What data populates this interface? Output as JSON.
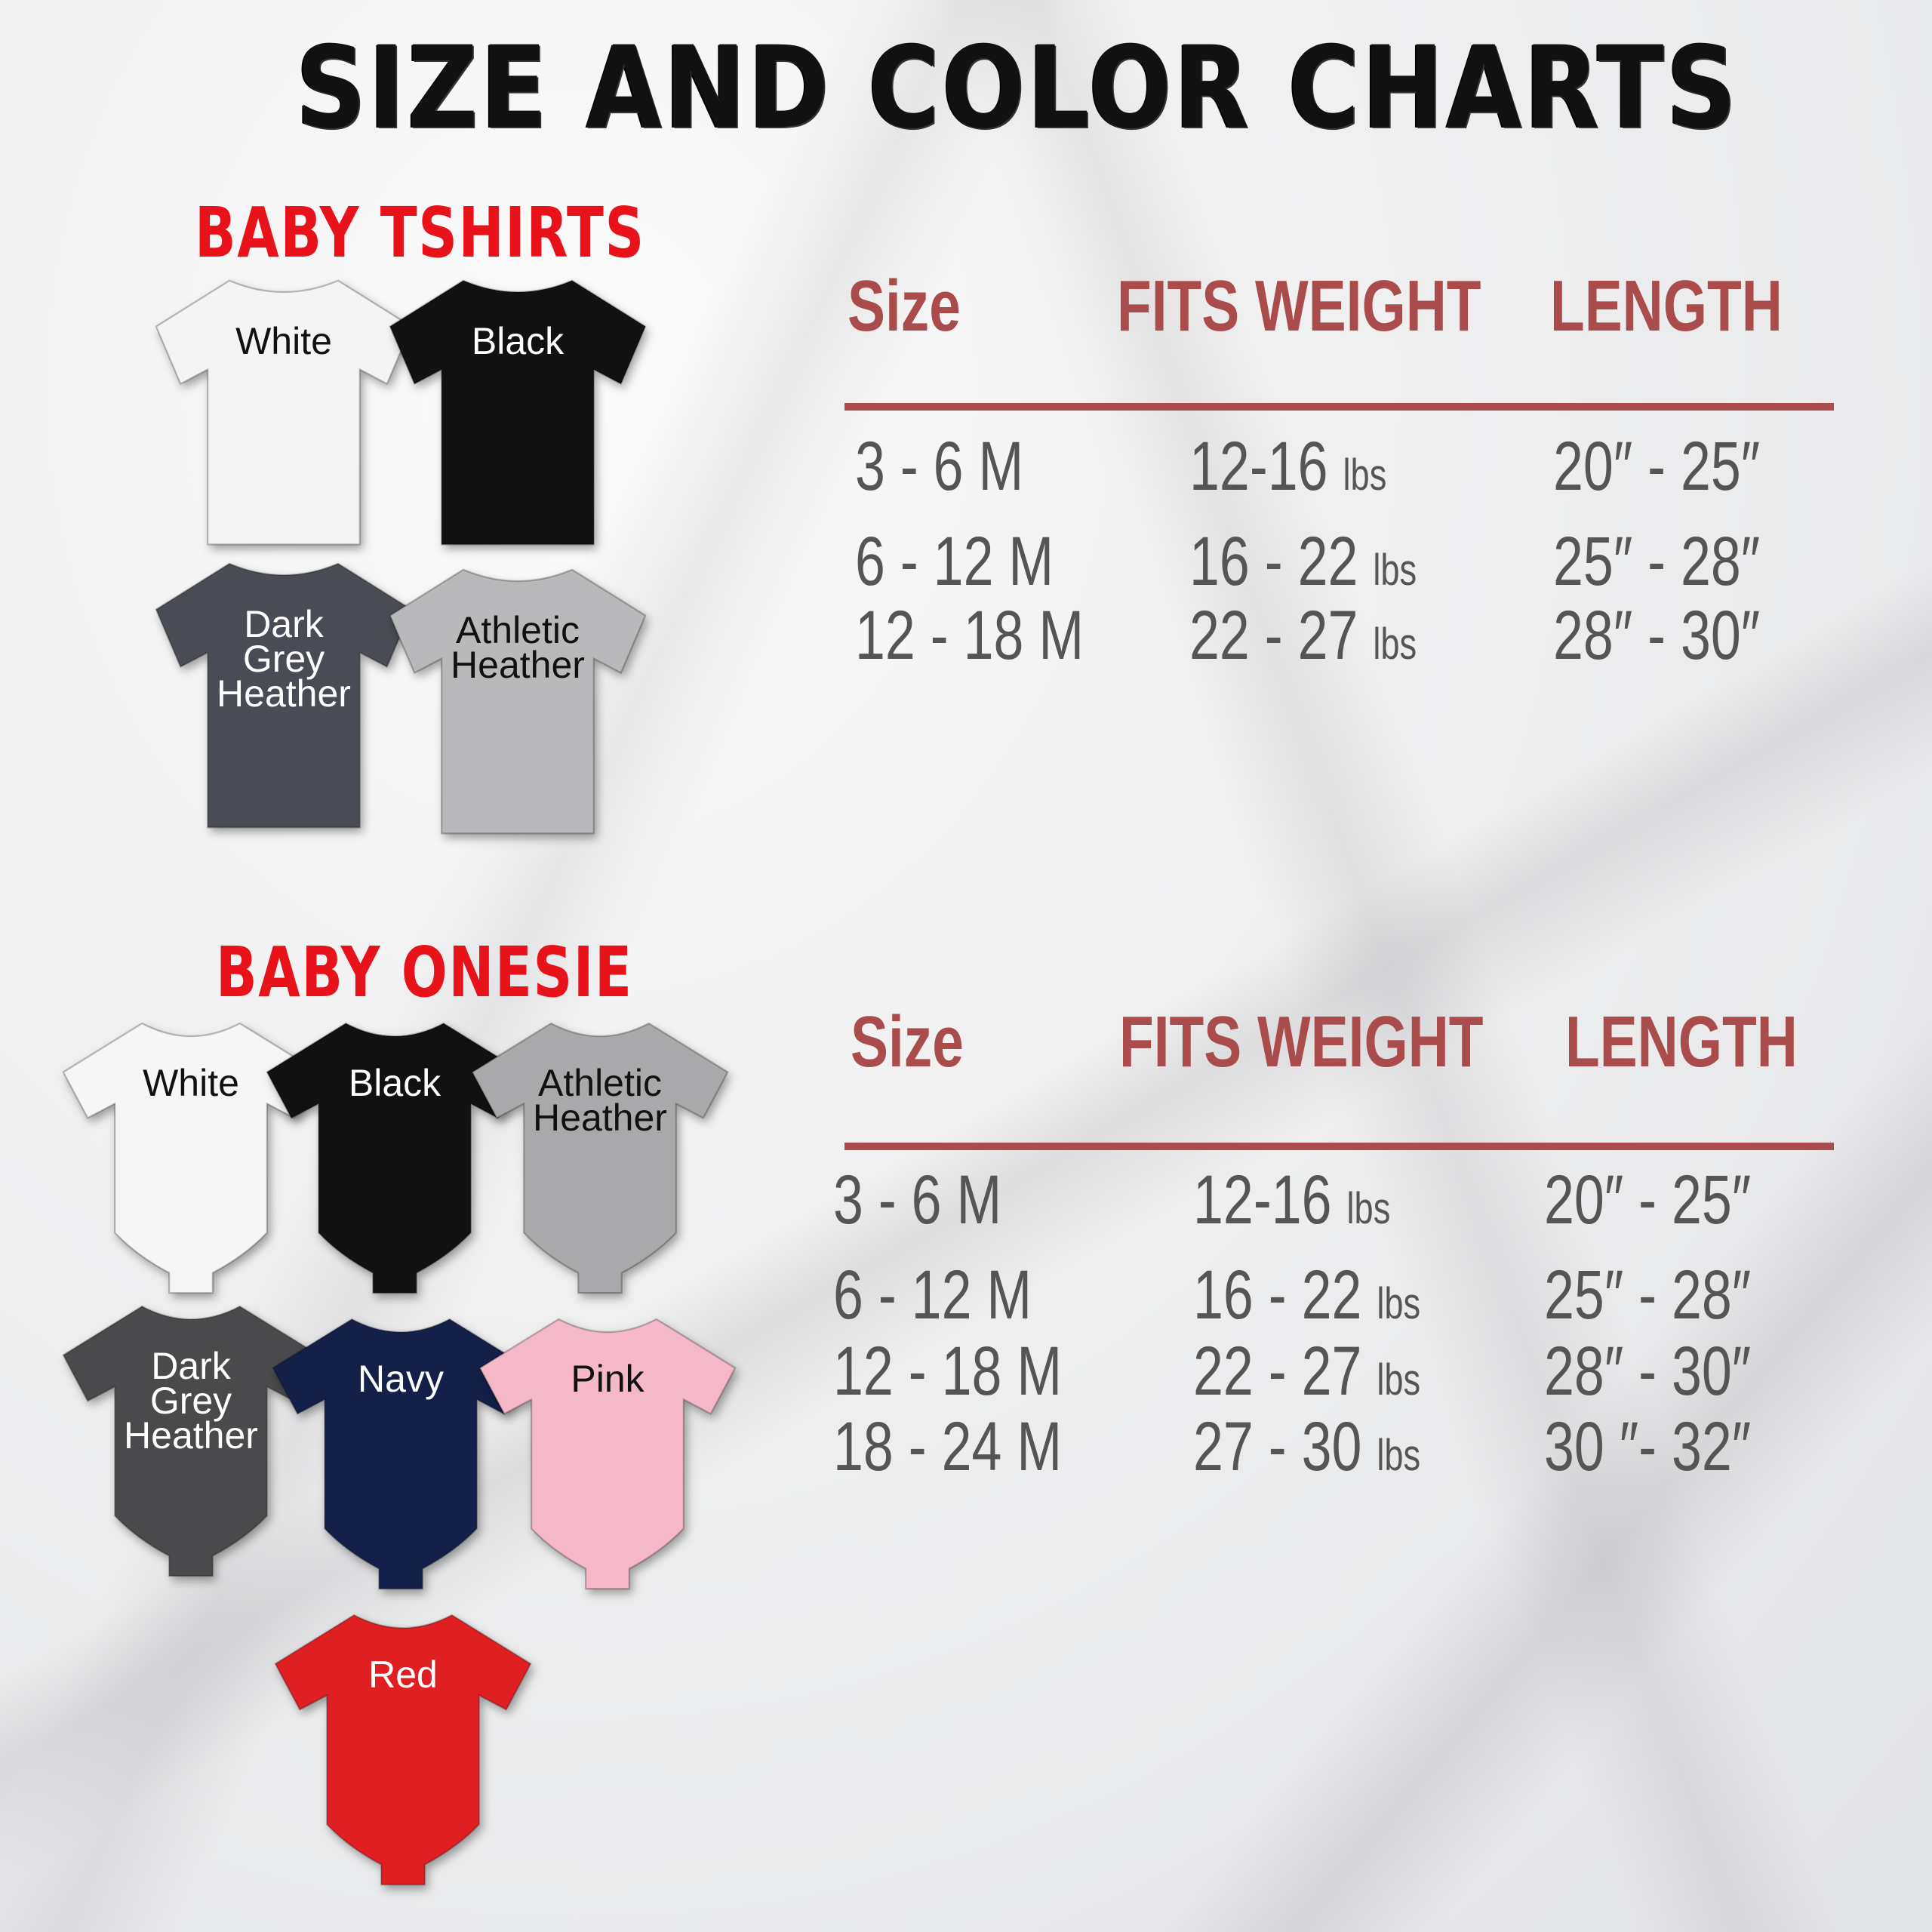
{
  "title": "SIZE AND COLOR CHARTS",
  "tshirts": {
    "heading": "BABY TSHIRTS",
    "items": [
      {
        "label": "White",
        "color": "#f4f4f4",
        "text": "#111"
      },
      {
        "label": "Black",
        "color": "#111111",
        "text": "#fff"
      },
      {
        "label": "Dark Grey Heather",
        "color": "#4a4c55",
        "text": "#fff"
      },
      {
        "label": "Athletic Heather",
        "color": "#b9b9bb",
        "text": "#111"
      }
    ],
    "table": {
      "headers": [
        "Size",
        "FITS WEIGHT",
        "LENGTH"
      ],
      "rows": [
        [
          "3 - 6 M",
          "12-16",
          "lbs",
          "20″ - 25″"
        ],
        [
          "6 - 12 M",
          "16 - 22",
          "lbs",
          "25″ - 28″"
        ],
        [
          "12 - 18 M",
          "22 - 27",
          "lbs",
          "28″ - 30″"
        ]
      ]
    }
  },
  "onesies": {
    "heading": "BABY ONESIE",
    "items": [
      {
        "label": "White",
        "color": "#f6f6f6",
        "text": "#111"
      },
      {
        "label": "Black",
        "color": "#111111",
        "text": "#fff"
      },
      {
        "label": "Athletic Heather",
        "color": "#a9a9ab",
        "text": "#111"
      },
      {
        "label": "Dark Grey Heather",
        "color": "#4a4a4c",
        "text": "#fff"
      },
      {
        "label": "Navy",
        "color": "#14204a",
        "text": "#fff"
      },
      {
        "label": "Pink",
        "color": "#f5b8c8",
        "text": "#111"
      },
      {
        "label": "Red",
        "color": "#e01f22",
        "text": "#fff"
      }
    ],
    "table": {
      "headers": [
        "Size",
        "FITS WEIGHT",
        "LENGTH"
      ],
      "rows": [
        [
          "3 - 6 M",
          "12-16",
          "lbs",
          "20″ - 25″"
        ],
        [
          "6 - 12 M",
          "16 - 22",
          "lbs",
          "25″ - 28″"
        ],
        [
          "12 - 18 M",
          "22 - 27",
          "lbs",
          "28″ - 30″"
        ],
        [
          "18 - 24 M",
          "27 - 30",
          "lbs",
          "30 ″- 32″"
        ]
      ]
    }
  },
  "colors": {
    "accent": "#ab4c4c",
    "section": "#e8131a",
    "body_text": "#555555"
  }
}
